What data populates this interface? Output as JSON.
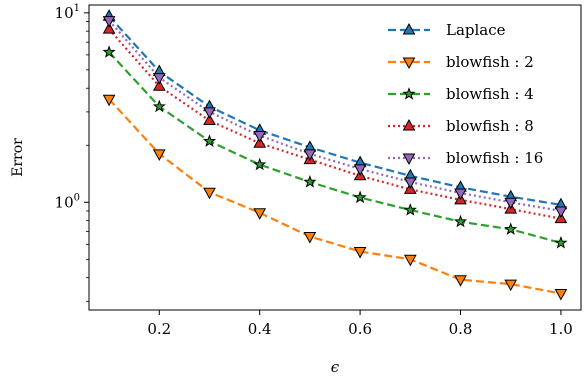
{
  "chart_data": {
    "type": "line",
    "title": "",
    "xlabel": "ϵ",
    "ylabel": "Error",
    "y_scale": "log",
    "xlim": [
      0.06,
      1.04
    ],
    "ylim": [
      0.27,
      11.0
    ],
    "x_ticks": [
      {
        "value": 0.2,
        "label": "0.2"
      },
      {
        "value": 0.4,
        "label": "0.4"
      },
      {
        "value": 0.6,
        "label": "0.6"
      },
      {
        "value": 0.8,
        "label": "0.8"
      },
      {
        "value": 1.0,
        "label": "1.0"
      }
    ],
    "y_ticks": [
      {
        "value": 1,
        "base": "10",
        "exp": "0"
      },
      {
        "value": 10,
        "base": "10",
        "exp": "1"
      }
    ],
    "grid": false,
    "legend_position": "top-right",
    "x": [
      0.1,
      0.2,
      0.3,
      0.4,
      0.5,
      0.6,
      0.7,
      0.8,
      0.9,
      1.0
    ],
    "series": [
      {
        "name": "Laplace",
        "color": "#1f77b4",
        "marker": "triangle-up",
        "dash": "8,4",
        "values": [
          9.6,
          4.9,
          3.2,
          2.4,
          1.95,
          1.62,
          1.38,
          1.2,
          1.07,
          0.97
        ]
      },
      {
        "name": "blowfish : 2",
        "color": "#ff7f0e",
        "marker": "triangle-down",
        "dash": "8,4",
        "values": [
          3.5,
          1.8,
          1.13,
          0.88,
          0.66,
          0.55,
          0.5,
          0.39,
          0.37,
          0.33
        ]
      },
      {
        "name": "blowfish : 4",
        "color": "#2ca02c",
        "marker": "star",
        "dash": "8,4",
        "values": [
          6.2,
          3.2,
          2.1,
          1.58,
          1.28,
          1.06,
          0.91,
          0.79,
          0.72,
          0.61
        ]
      },
      {
        "name": "blowfish : 8",
        "color": "#d62728",
        "marker": "triangle-up",
        "dash": "2,3",
        "values": [
          8.2,
          4.1,
          2.7,
          2.05,
          1.68,
          1.38,
          1.17,
          1.03,
          0.92,
          0.82
        ]
      },
      {
        "name": "blowfish : 16",
        "color": "#9467bd",
        "marker": "triangle-down",
        "dash": "2,3",
        "values": [
          9.1,
          4.55,
          3.0,
          2.25,
          1.8,
          1.5,
          1.28,
          1.12,
          1.0,
          0.9
        ]
      }
    ]
  }
}
